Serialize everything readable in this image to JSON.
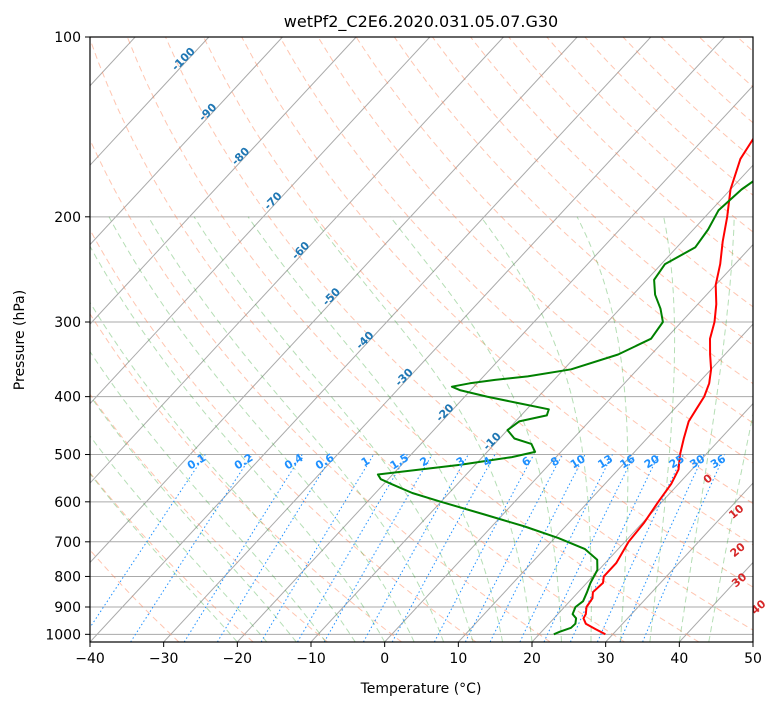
{
  "chart_data": {
    "type": "line",
    "title": "wetPf2_C2E6.2020.031.05.07.G30",
    "xlabel": "Temperature (°C)",
    "ylabel": "Pressure (hPa)",
    "xlim": [
      -40,
      50
    ],
    "ylim": [
      1030,
      100
    ],
    "y_scale": "log",
    "x_ticks": [
      -40,
      -30,
      -20,
      -10,
      0,
      10,
      20,
      30,
      40,
      50
    ],
    "x_tick_labels": [
      "−40",
      "−30",
      "−20",
      "−10",
      "0",
      "10",
      "20",
      "30",
      "40",
      "50"
    ],
    "y_ticks": [
      100,
      200,
      300,
      400,
      500,
      600,
      700,
      800,
      900,
      1000
    ],
    "y_tick_labels": [
      "100",
      "200",
      "300",
      "400",
      "500",
      "600",
      "700",
      "800",
      "900",
      "1000"
    ],
    "grid": true,
    "series": [
      {
        "color": "#ff0000",
        "pressure": [
          1000,
          980,
          960,
          940,
          925,
          900,
          870,
          850,
          820,
          800,
          760,
          700,
          650,
          600,
          560,
          530,
          500,
          470,
          440,
          420,
          400,
          380,
          360,
          340,
          320,
          300,
          280,
          260,
          240,
          220,
          200,
          180,
          160,
          145,
          130,
          120,
          110,
          100
        ],
        "temperature": [
          29,
          27,
          25,
          24,
          23.8,
          23,
          22.7,
          22,
          22.2,
          21.5,
          21.5,
          20.5,
          20.2,
          19.5,
          19,
          18.2,
          16.5,
          15,
          13.5,
          13,
          12.5,
          11.5,
          10,
          8,
          6,
          4.5,
          2.5,
          0,
          -2,
          -4.5,
          -7,
          -10,
          -12.5,
          -13.5,
          -14,
          -15,
          -15.2,
          -15.7
        ]
      },
      {
        "color": "#008000",
        "pressure": [
          1000,
          990,
          975,
          960,
          940,
          925,
          900,
          880,
          850,
          820,
          780,
          750,
          720,
          690,
          660,
          630,
          600,
          580,
          560,
          550,
          540,
          520,
          505,
          495,
          480,
          470,
          455,
          440,
          430,
          420,
          410,
          400,
          390,
          385,
          380,
          375,
          370,
          360,
          340,
          320,
          300,
          285,
          270,
          255,
          240,
          225,
          210,
          195,
          180,
          165,
          150,
          135,
          125,
          115,
          105,
          100
        ],
        "temperature": [
          22,
          22.5,
          23.5,
          23.6,
          23,
          22,
          21.5,
          21.8,
          21.2,
          20.5,
          19.8,
          18.5,
          15.5,
          10.5,
          4.5,
          -2.5,
          -10,
          -15,
          -19,
          -21,
          -22,
          -12,
          -6,
          -3.5,
          -5,
          -8,
          -10,
          -9.5,
          -6.5,
          -7,
          -12,
          -17,
          -21.5,
          -23,
          -21,
          -18,
          -14,
          -9,
          -4.5,
          -2,
          -2.5,
          -4.5,
          -7,
          -9,
          -9.5,
          -7.5,
          -8,
          -9,
          -8.5,
          -7,
          -4,
          -4.5,
          -5.5,
          -7.5,
          -9,
          -7.6
        ]
      }
    ],
    "isotherm_labels": [
      -100,
      -90,
      -80,
      -70,
      -60,
      -50,
      -40,
      -30,
      -20,
      -10
    ],
    "mixing_ratio_labels": [
      "0.1",
      "0.2",
      "0.4",
      "0.6",
      "1",
      "1.5",
      "2",
      "3",
      "4",
      "6",
      "8",
      "10",
      "13",
      "16",
      "20",
      "25",
      "30",
      "36"
    ],
    "moist_adiabat_labels": [
      "0",
      "10",
      "20",
      "30",
      "40"
    ],
    "colors": {
      "isotherm": "#1f77b4",
      "mixing_ratio": "#1e90ff",
      "moist_adiabat": "#d62728",
      "dry_adiabat": "#ff7f50",
      "moist_adiabat_line": "#2ca02c",
      "grid": "#aaaaaa"
    }
  }
}
